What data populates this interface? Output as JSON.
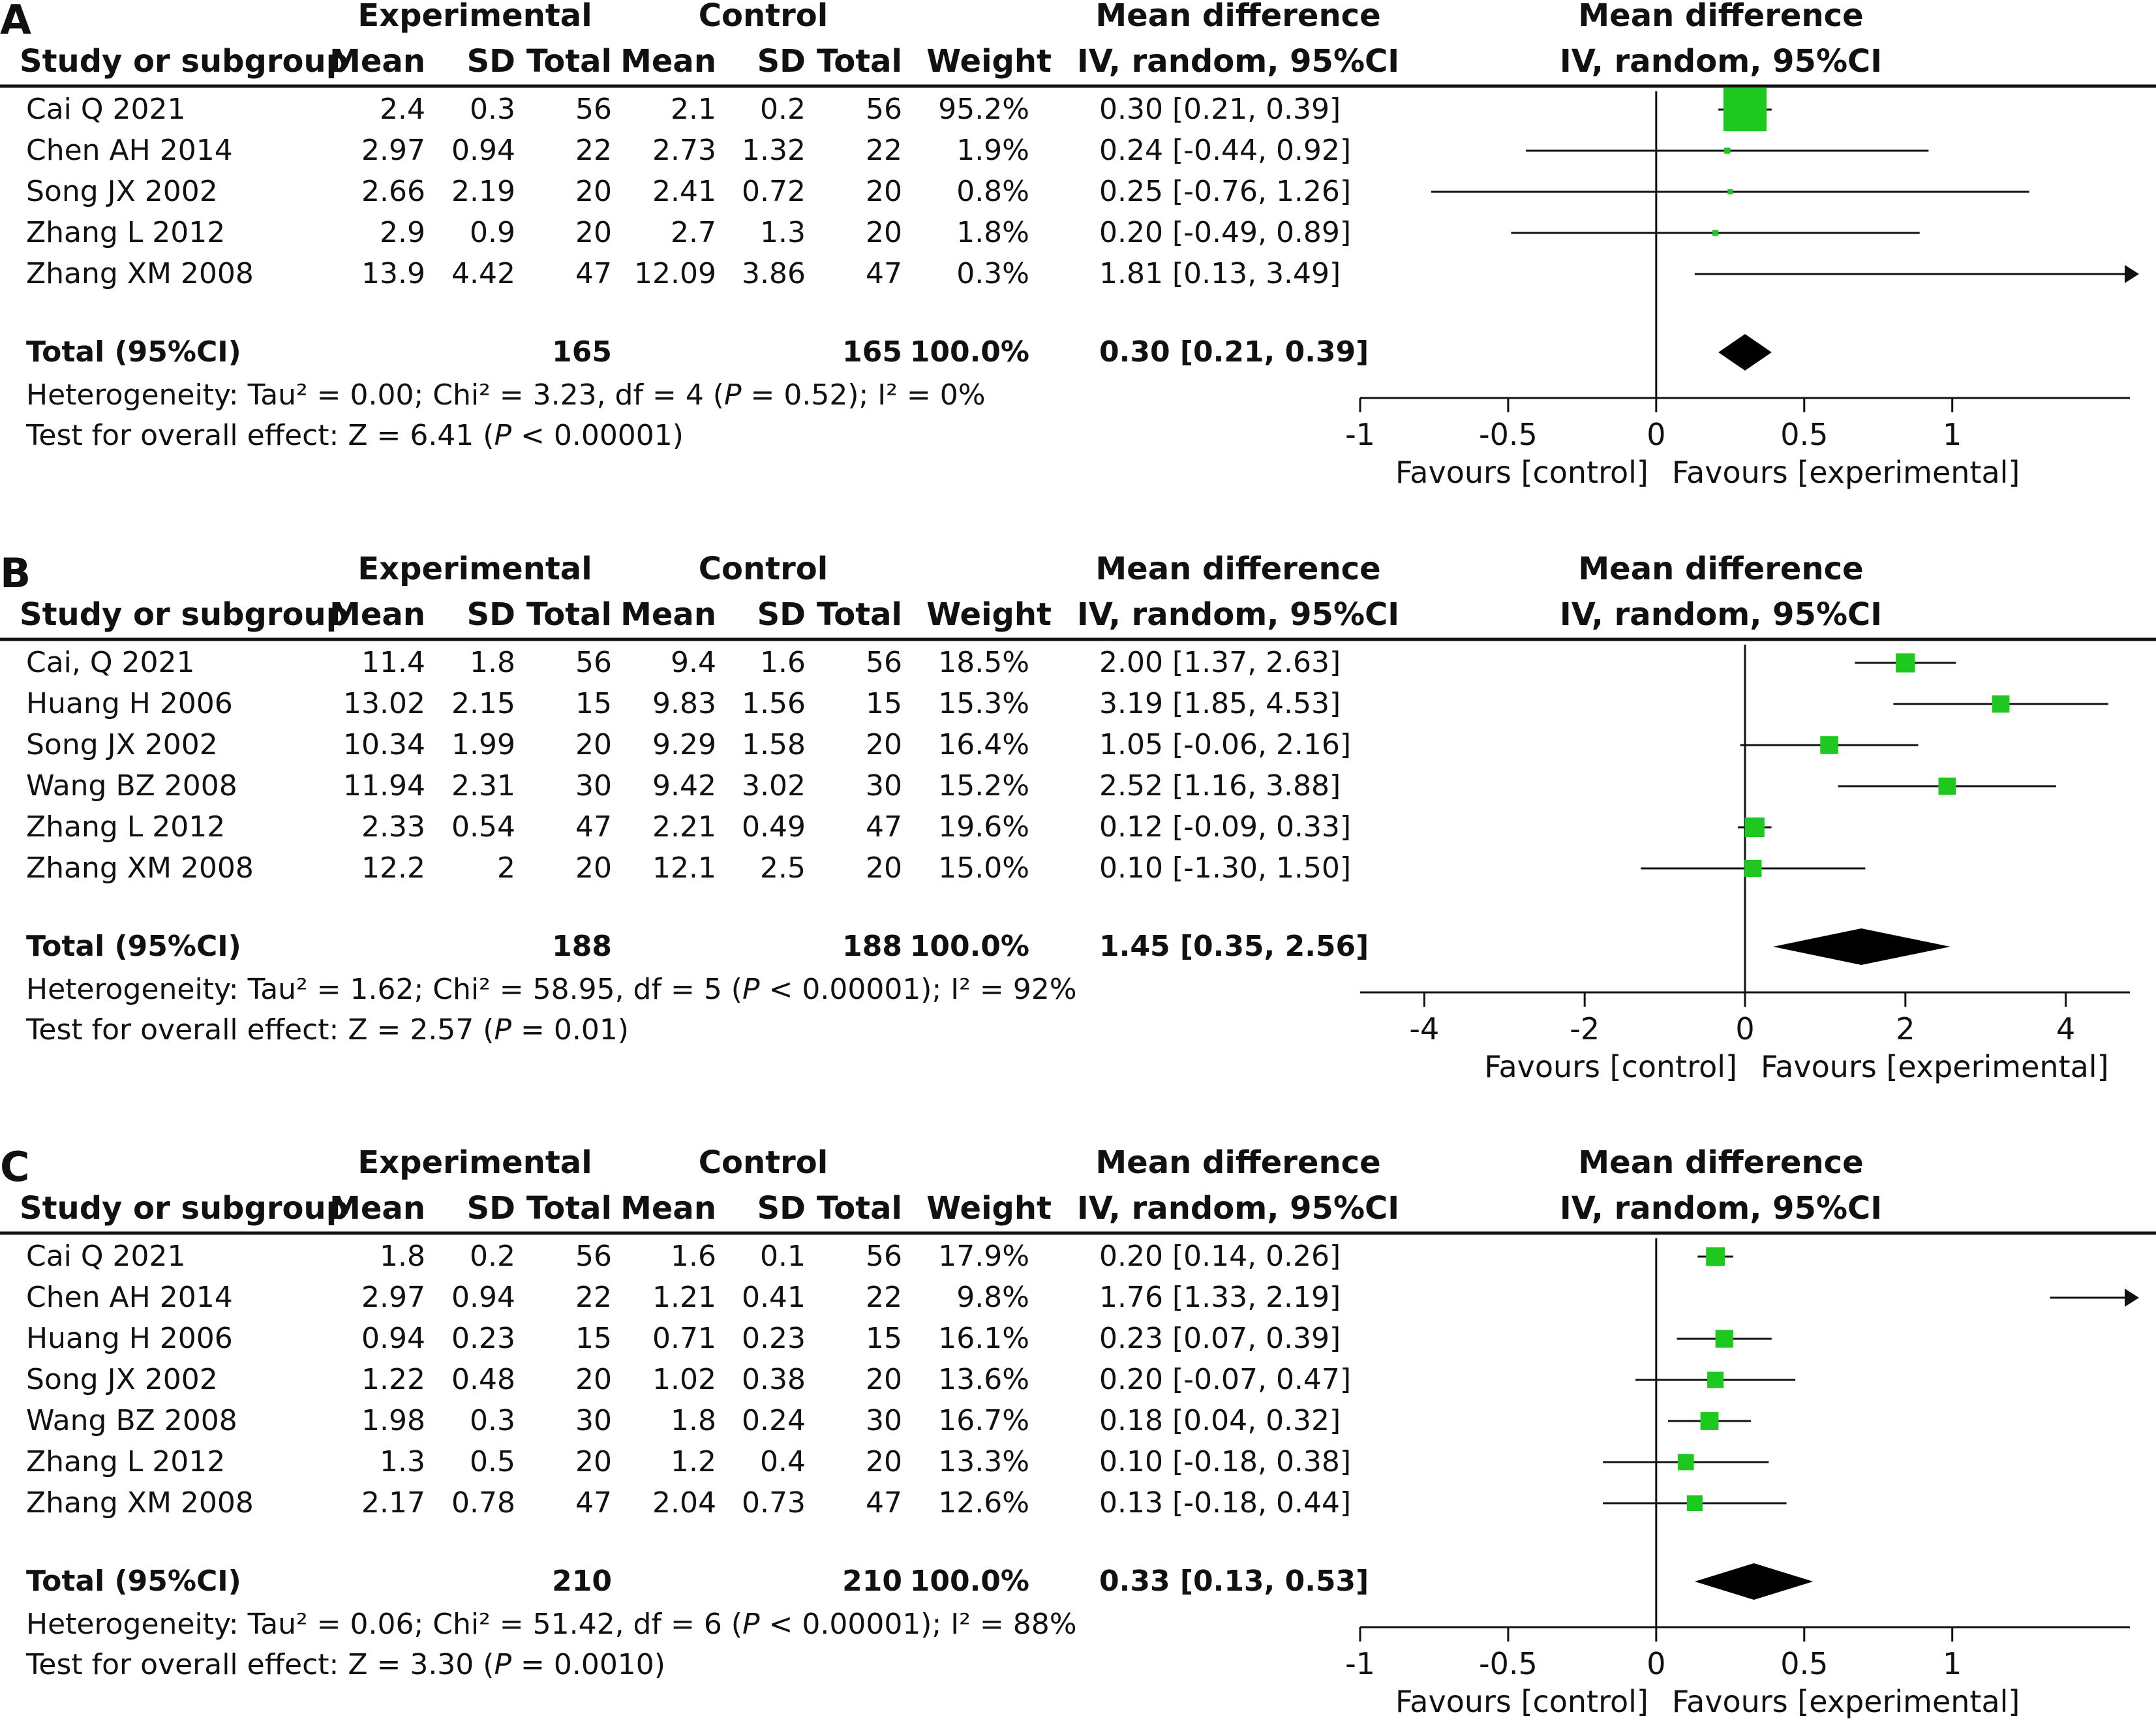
{
  "chart_data": [
    {
      "type": "forest",
      "panel_label": "A",
      "group_headers": {
        "experimental": "Experimental",
        "control": "Control",
        "md_table": "Mean difference",
        "md_plot": "Mean difference"
      },
      "columns": {
        "study": "Study or subgroup",
        "exp_mean": "Mean",
        "exp_sd": "SD",
        "exp_total": "Total",
        "ctl_mean": "Mean",
        "ctl_sd": "SD",
        "ctl_total": "Total",
        "weight": "Weight",
        "md": "IV, random, 95%CI",
        "plot_method": "IV, random, 95%CI"
      },
      "xlim": [
        -1,
        1.6
      ],
      "ticks": [
        {
          "v": -1,
          "label": "-1"
        },
        {
          "v": -0.5,
          "label": "-0.5"
        },
        {
          "v": 0,
          "label": "0"
        },
        {
          "v": 0.5,
          "label": "0.5"
        },
        {
          "v": 1,
          "label": "1"
        }
      ],
      "favours_left": "Favours [control]",
      "favours_right": "Favours [experimental]",
      "studies": [
        {
          "name": "Cai Q 2021",
          "exp_mean": "2.4",
          "exp_sd": "0.3",
          "exp_total": "56",
          "ctl_mean": "2.1",
          "ctl_sd": "0.2",
          "ctl_total": "56",
          "weight": "95.2%",
          "md": "0.30 [0.21, 0.39]",
          "est": 0.3,
          "lo": 0.21,
          "hi": 0.39,
          "w": 95.2
        },
        {
          "name": "Chen AH 2014",
          "exp_mean": "2.97",
          "exp_sd": "0.94",
          "exp_total": "22",
          "ctl_mean": "2.73",
          "ctl_sd": "1.32",
          "ctl_total": "22",
          "weight": "1.9%",
          "md": "0.24 [-0.44, 0.92]",
          "est": 0.24,
          "lo": -0.44,
          "hi": 0.92,
          "w": 1.9
        },
        {
          "name": "Song JX  2002",
          "exp_mean": "2.66",
          "exp_sd": "2.19",
          "exp_total": "20",
          "ctl_mean": "2.41",
          "ctl_sd": "0.72",
          "ctl_total": "20",
          "weight": "0.8%",
          "md": "0.25 [-0.76, 1.26]",
          "est": 0.25,
          "lo": -0.76,
          "hi": 1.26,
          "w": 0.8
        },
        {
          "name": "Zhang L 2012",
          "exp_mean": "2.9",
          "exp_sd": "0.9",
          "exp_total": "20",
          "ctl_mean": "2.7",
          "ctl_sd": "1.3",
          "ctl_total": "20",
          "weight": "1.8%",
          "md": "0.20 [-0.49, 0.89]",
          "est": 0.2,
          "lo": -0.49,
          "hi": 0.89,
          "w": 1.8
        },
        {
          "name": "Zhang XM 2008",
          "exp_mean": "13.9",
          "exp_sd": "4.42",
          "exp_total": "47",
          "ctl_mean": "12.09",
          "ctl_sd": "3.86",
          "ctl_total": "47",
          "weight": "0.3%",
          "md": "1.81 [0.13, 3.49]",
          "est": 1.81,
          "lo": 0.13,
          "hi": 3.49,
          "w": 0.3
        }
      ],
      "total": {
        "name": "Total (95%CI)",
        "exp_total": "165",
        "ctl_total": "165",
        "weight": "100.0%",
        "md": "0.30 [0.21, 0.39]",
        "est": 0.3,
        "lo": 0.21,
        "hi": 0.39
      },
      "heterogeneity": {
        "pre": "Heterogeneity: Tau² = 0.00; Chi² = 3.23, df = 4 (",
        "p": "P",
        "post": " = 0.52); I² = 0%"
      },
      "overall": {
        "pre": "Test for overall effect: Z = 6.41 (",
        "p": "P",
        "post": " < 0.00001)"
      }
    },
    {
      "type": "forest",
      "panel_label": "B",
      "group_headers": {
        "experimental": "Experimental",
        "control": "Control",
        "md_table": "Mean difference",
        "md_plot": "Mean difference"
      },
      "columns": {
        "study": "Study or subgroup",
        "exp_mean": "Mean",
        "exp_sd": "SD",
        "exp_total": "Total",
        "ctl_mean": "Mean",
        "ctl_sd": "SD",
        "ctl_total": "Total",
        "weight": "Weight",
        "md": "IV, random, 95%CI",
        "plot_method": "IV, random, 95%CI"
      },
      "xlim": [
        -4.8,
        4.8
      ],
      "ticks": [
        {
          "v": -4,
          "label": "-4"
        },
        {
          "v": -2,
          "label": "-2"
        },
        {
          "v": 0,
          "label": "0"
        },
        {
          "v": 2,
          "label": "2"
        },
        {
          "v": 4,
          "label": "4"
        }
      ],
      "favours_left": "Favours [control]",
      "favours_right": "Favours [experimental]",
      "studies": [
        {
          "name": "Cai, Q 2021",
          "exp_mean": "11.4",
          "exp_sd": "1.8",
          "exp_total": "56",
          "ctl_mean": "9.4",
          "ctl_sd": "1.6",
          "ctl_total": "56",
          "weight": "18.5%",
          "md": "2.00 [1.37, 2.63]",
          "est": 2.0,
          "lo": 1.37,
          "hi": 2.63,
          "w": 18.5
        },
        {
          "name": "Huang H 2006",
          "exp_mean": "13.02",
          "exp_sd": "2.15",
          "exp_total": "15",
          "ctl_mean": "9.83",
          "ctl_sd": "1.56",
          "ctl_total": "15",
          "weight": "15.3%",
          "md": "3.19 [1.85, 4.53]",
          "est": 3.19,
          "lo": 1.85,
          "hi": 4.53,
          "w": 15.3
        },
        {
          "name": "Song JX  2002",
          "exp_mean": "10.34",
          "exp_sd": "1.99",
          "exp_total": "20",
          "ctl_mean": "9.29",
          "ctl_sd": "1.58",
          "ctl_total": "20",
          "weight": "16.4%",
          "md": "1.05 [-0.06, 2.16]",
          "est": 1.05,
          "lo": -0.06,
          "hi": 2.16,
          "w": 16.4
        },
        {
          "name": "Wang BZ 2008",
          "exp_mean": "11.94",
          "exp_sd": "2.31",
          "exp_total": "30",
          "ctl_mean": "9.42",
          "ctl_sd": "3.02",
          "ctl_total": "30",
          "weight": "15.2%",
          "md": "2.52 [1.16, 3.88]",
          "est": 2.52,
          "lo": 1.16,
          "hi": 3.88,
          "w": 15.2
        },
        {
          "name": "Zhang L 2012",
          "exp_mean": "2.33",
          "exp_sd": "0.54",
          "exp_total": "47",
          "ctl_mean": "2.21",
          "ctl_sd": "0.49",
          "ctl_total": "47",
          "weight": "19.6%",
          "md": "0.12 [-0.09, 0.33]",
          "est": 0.12,
          "lo": -0.09,
          "hi": 0.33,
          "w": 19.6
        },
        {
          "name": "Zhang XM 2008",
          "exp_mean": "12.2",
          "exp_sd": "2",
          "exp_total": "20",
          "ctl_mean": "12.1",
          "ctl_sd": "2.5",
          "ctl_total": "20",
          "weight": "15.0%",
          "md": "0.10 [-1.30, 1.50]",
          "est": 0.1,
          "lo": -1.3,
          "hi": 1.5,
          "w": 15.0
        }
      ],
      "total": {
        "name": "Total (95%CI)",
        "exp_total": "188",
        "ctl_total": "188",
        "weight": "100.0%",
        "md": "1.45 [0.35, 2.56]",
        "est": 1.45,
        "lo": 0.35,
        "hi": 2.56
      },
      "heterogeneity": {
        "pre": "Heterogeneity: Tau² = 1.62; Chi² = 58.95, df = 5 (",
        "p": "P",
        "post": " < 0.00001); I² = 92%"
      },
      "overall": {
        "pre": "Test for overall effect: Z = 2.57 (",
        "p": "P",
        "post": " = 0.01)"
      }
    },
    {
      "type": "forest",
      "panel_label": "C",
      "group_headers": {
        "experimental": "Experimental",
        "control": "Control",
        "md_table": "Mean difference",
        "md_plot": "Mean difference"
      },
      "columns": {
        "study": "Study or subgroup",
        "exp_mean": "Mean",
        "exp_sd": "SD",
        "exp_total": "Total",
        "ctl_mean": "Mean",
        "ctl_sd": "SD",
        "ctl_total": "Total",
        "weight": "Weight",
        "md": "IV, random, 95%CI",
        "plot_method": "IV, random, 95%CI"
      },
      "xlim": [
        -1,
        1.6
      ],
      "ticks": [
        {
          "v": -1,
          "label": "-1"
        },
        {
          "v": -0.5,
          "label": "-0.5"
        },
        {
          "v": 0,
          "label": "0"
        },
        {
          "v": 0.5,
          "label": "0.5"
        },
        {
          "v": 1,
          "label": "1"
        }
      ],
      "favours_left": "Favours [control]",
      "favours_right": "Favours [experimental]",
      "studies": [
        {
          "name": "Cai Q 2021",
          "exp_mean": "1.8",
          "exp_sd": "0.2",
          "exp_total": "56",
          "ctl_mean": "1.6",
          "ctl_sd": "0.1",
          "ctl_total": "56",
          "weight": "17.9%",
          "md": "0.20 [0.14, 0.26]",
          "est": 0.2,
          "lo": 0.14,
          "hi": 0.26,
          "w": 17.9
        },
        {
          "name": "Chen AH 2014",
          "exp_mean": "2.97",
          "exp_sd": "0.94",
          "exp_total": "22",
          "ctl_mean": "1.21",
          "ctl_sd": "0.41",
          "ctl_total": "22",
          "weight": "9.8%",
          "md": "1.76 [1.33, 2.19]",
          "est": 1.76,
          "lo": 1.33,
          "hi": 2.19,
          "w": 9.8
        },
        {
          "name": "Huang H 2006",
          "exp_mean": "0.94",
          "exp_sd": "0.23",
          "exp_total": "15",
          "ctl_mean": "0.71",
          "ctl_sd": "0.23",
          "ctl_total": "15",
          "weight": "16.1%",
          "md": "0.23 [0.07, 0.39]",
          "est": 0.23,
          "lo": 0.07,
          "hi": 0.39,
          "w": 16.1
        },
        {
          "name": "Song JX  2002",
          "exp_mean": "1.22",
          "exp_sd": "0.48",
          "exp_total": "20",
          "ctl_mean": "1.02",
          "ctl_sd": "0.38",
          "ctl_total": "20",
          "weight": "13.6%",
          "md": "0.20 [-0.07, 0.47]",
          "est": 0.2,
          "lo": -0.07,
          "hi": 0.47,
          "w": 13.6
        },
        {
          "name": "Wang BZ 2008",
          "exp_mean": "1.98",
          "exp_sd": "0.3",
          "exp_total": "30",
          "ctl_mean": "1.8",
          "ctl_sd": "0.24",
          "ctl_total": "30",
          "weight": "16.7%",
          "md": "0.18 [0.04, 0.32]",
          "est": 0.18,
          "lo": 0.04,
          "hi": 0.32,
          "w": 16.7
        },
        {
          "name": "Zhang L 2012",
          "exp_mean": "1.3",
          "exp_sd": "0.5",
          "exp_total": "20",
          "ctl_mean": "1.2",
          "ctl_sd": "0.4",
          "ctl_total": "20",
          "weight": "13.3%",
          "md": "0.10 [-0.18, 0.38]",
          "est": 0.1,
          "lo": -0.18,
          "hi": 0.38,
          "w": 13.3
        },
        {
          "name": "Zhang XM 2008",
          "exp_mean": "2.17",
          "exp_sd": "0.78",
          "exp_total": "47",
          "ctl_mean": "2.04",
          "ctl_sd": "0.73",
          "ctl_total": "47",
          "weight": "12.6%",
          "md": "0.13 [-0.18, 0.44]",
          "est": 0.13,
          "lo": -0.18,
          "hi": 0.44,
          "w": 12.6
        }
      ],
      "total": {
        "name": "Total (95%CI)",
        "exp_total": "210",
        "ctl_total": "210",
        "weight": "100.0%",
        "md": "0.33 [0.13, 0.53]",
        "est": 0.33,
        "lo": 0.13,
        "hi": 0.53
      },
      "heterogeneity": {
        "pre": "Heterogeneity: Tau² = 0.06; Chi² = 51.42, df = 6 (",
        "p": "P",
        "post": " < 0.00001); I² = 88%"
      },
      "overall": {
        "pre": "Test for overall effect: Z = 3.30 (",
        "p": "P",
        "post": " = 0.0010)"
      }
    }
  ],
  "colors": {
    "marker": "#1ec81e",
    "line": "#111111",
    "diamond": "#000000",
    "text": "#111111"
  }
}
